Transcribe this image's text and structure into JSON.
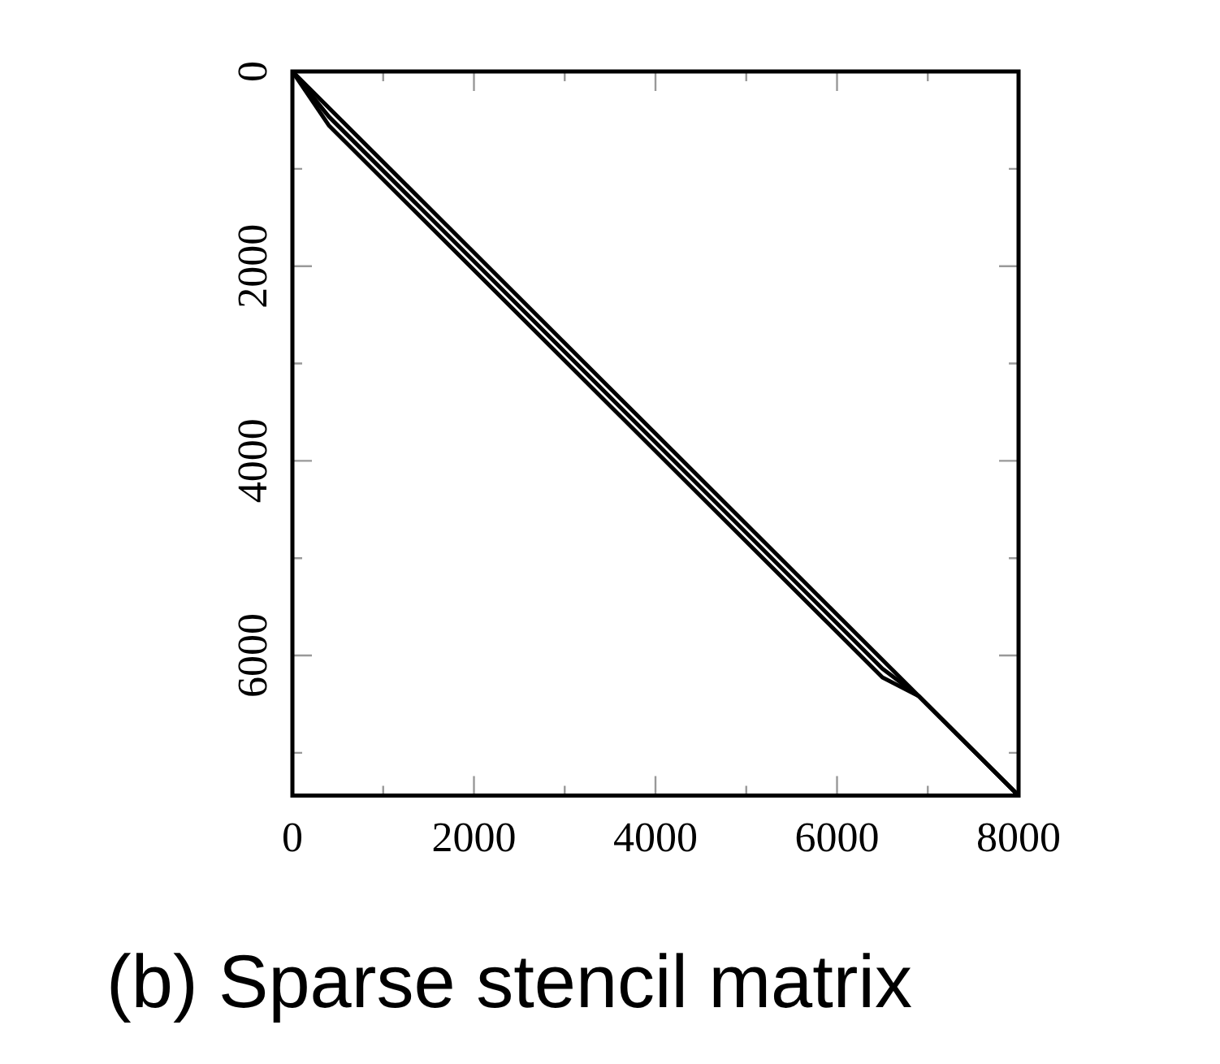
{
  "chart_data": {
    "type": "line",
    "title": "(b) Sparse stencil matrix",
    "series": [
      {
        "color": "#000000",
        "x": [
          0,
          8000
        ],
        "values": [
          0,
          7440
        ]
      },
      {
        "color": "#000000",
        "x": [
          0,
          400,
          6500,
          6900,
          8000
        ],
        "values": [
          0,
          462,
          6135,
          6417,
          7440
        ]
      },
      {
        "color": "#000000",
        "x": [
          0,
          400,
          6500,
          6900,
          8000
        ],
        "values": [
          0,
          552,
          6225,
          6417,
          7440
        ]
      }
    ],
    "xlim": [
      0,
      8000
    ],
    "xticks": [
      0,
      {
        "value": 1000,
        "label": null
      },
      2000,
      {
        "value": 3000,
        "label": null
      },
      4000,
      {
        "value": 5000,
        "label": null
      },
      6000,
      {
        "value": 7000,
        "label": null
      },
      8000
    ],
    "ylim": [
      7440,
      0
    ],
    "yticks": [
      0,
      {
        "value": 1000,
        "label": null
      },
      2000,
      {
        "value": 3000,
        "label": null
      },
      4000,
      {
        "value": 5000,
        "label": null
      },
      6000,
      {
        "value": 7000,
        "label": null
      }
    ],
    "grid": false,
    "legend": false,
    "marker": "none",
    "line_style": "solid"
  }
}
